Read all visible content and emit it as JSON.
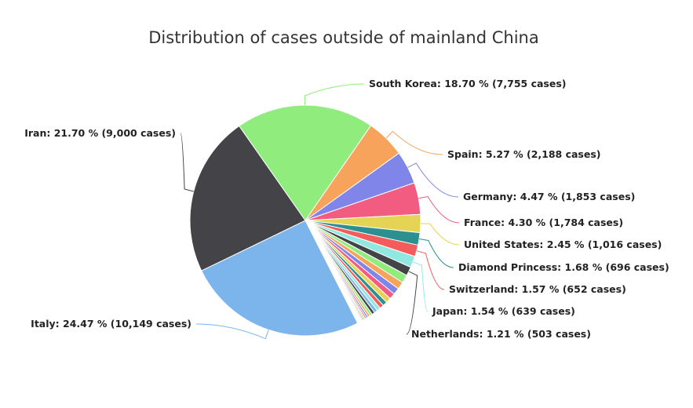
{
  "chart_data": {
    "type": "pie",
    "title": "Distribution of cases outside of mainland China",
    "slices": [
      {
        "name": "South Korea",
        "value": 18.7,
        "cases": "7,755",
        "label": "South Korea: 18.70 % (7,755 cases)",
        "color": "#90ed7d",
        "labeled": true
      },
      {
        "name": "Spain",
        "value": 5.27,
        "cases": "2,188",
        "label": "Spain: 5.27 % (2,188 cases)",
        "color": "#f7a35c",
        "labeled": true
      },
      {
        "name": "Germany",
        "value": 4.47,
        "cases": "1,853",
        "label": "Germany: 4.47 % (1,853 cases)",
        "color": "#8085e9",
        "labeled": true
      },
      {
        "name": "France",
        "value": 4.3,
        "cases": "1,784",
        "label": "France: 4.30 % (1,784 cases)",
        "color": "#f15c80",
        "labeled": true
      },
      {
        "name": "United States",
        "value": 2.45,
        "cases": "1,016",
        "label": "United States: 2.45 % (1,016 cases)",
        "color": "#e4d354",
        "labeled": true
      },
      {
        "name": "Diamond Princess",
        "value": 1.68,
        "cases": "696",
        "label": "Diamond Princess: 1.68 % (696 cases)",
        "color": "#2b908f",
        "labeled": true
      },
      {
        "name": "Switzerland",
        "value": 1.57,
        "cases": "652",
        "label": "Switzerland: 1.57 % (652 cases)",
        "color": "#f45b5b",
        "labeled": true
      },
      {
        "name": "Japan",
        "value": 1.54,
        "cases": "639",
        "label": "Japan: 1.54 % (639 cases)",
        "color": "#91e8e1",
        "labeled": true
      },
      {
        "name": "Netherlands",
        "value": 1.21,
        "cases": "503",
        "label": "Netherlands: 1.21 % (503 cases)",
        "color": "#434348",
        "labeled": true
      },
      {
        "name": "",
        "value": 1.1,
        "color": "#90ed7d",
        "labeled": false
      },
      {
        "name": "",
        "value": 1.0,
        "color": "#f7a35c",
        "labeled": false
      },
      {
        "name": "",
        "value": 0.9,
        "color": "#8085e9",
        "labeled": false
      },
      {
        "name": "",
        "value": 0.8,
        "color": "#f15c80",
        "labeled": false
      },
      {
        "name": "",
        "value": 0.7,
        "color": "#e4d354",
        "labeled": false
      },
      {
        "name": "",
        "value": 0.6,
        "color": "#2b908f",
        "labeled": false
      },
      {
        "name": "",
        "value": 0.55,
        "color": "#f45b5b",
        "labeled": false
      },
      {
        "name": "",
        "value": 0.5,
        "color": "#91e8e1",
        "labeled": false
      },
      {
        "name": "",
        "value": 0.45,
        "color": "#7cb5ec",
        "labeled": false
      },
      {
        "name": "",
        "value": 0.4,
        "color": "#434348",
        "labeled": false
      },
      {
        "name": "",
        "value": 0.35,
        "color": "#90ed7d",
        "labeled": false
      },
      {
        "name": "",
        "value": 0.3,
        "color": "#f7a35c",
        "labeled": false
      },
      {
        "name": "",
        "value": 0.25,
        "color": "#8085e9",
        "labeled": false
      },
      {
        "name": "",
        "value": 0.2,
        "color": "#f15c80",
        "labeled": false
      },
      {
        "name": "",
        "value": 0.18,
        "color": "#e4d354",
        "labeled": false
      },
      {
        "name": "",
        "value": 0.16,
        "color": "#2b908f",
        "labeled": false
      },
      {
        "name": "",
        "value": 0.14,
        "color": "#f45b5b",
        "labeled": false
      },
      {
        "name": "",
        "value": 0.12,
        "color": "#91e8e1",
        "labeled": false
      },
      {
        "name": "",
        "value": 0.1,
        "color": "#7cb5ec",
        "labeled": false
      },
      {
        "name": "",
        "value": 0.09,
        "color": "#434348",
        "labeled": false
      },
      {
        "name": "",
        "value": 0.08,
        "color": "#90ed7d",
        "labeled": false
      },
      {
        "name": "",
        "value": 0.07,
        "color": "#f7a35c",
        "labeled": false
      },
      {
        "name": "",
        "value": 0.06,
        "color": "#8085e9",
        "labeled": false
      },
      {
        "name": "",
        "value": 0.05,
        "color": "#f15c80",
        "labeled": false
      },
      {
        "name": "",
        "value": 0.05,
        "color": "#e4d354",
        "labeled": false
      },
      {
        "name": "",
        "value": 0.04,
        "color": "#2b908f",
        "labeled": false
      },
      {
        "name": "",
        "value": 0.04,
        "color": "#f45b5b",
        "labeled": false
      },
      {
        "name": "Italy",
        "value": 24.47,
        "cases": "10,149",
        "label": "Italy: 24.47 % (10,149 cases)",
        "color": "#7cb5ec",
        "labeled": true
      },
      {
        "name": "Iran",
        "value": 21.7,
        "cases": "9,000",
        "label": "Iran: 21.70 % (9,000 cases)",
        "color": "#434348",
        "labeled": true
      }
    ]
  }
}
